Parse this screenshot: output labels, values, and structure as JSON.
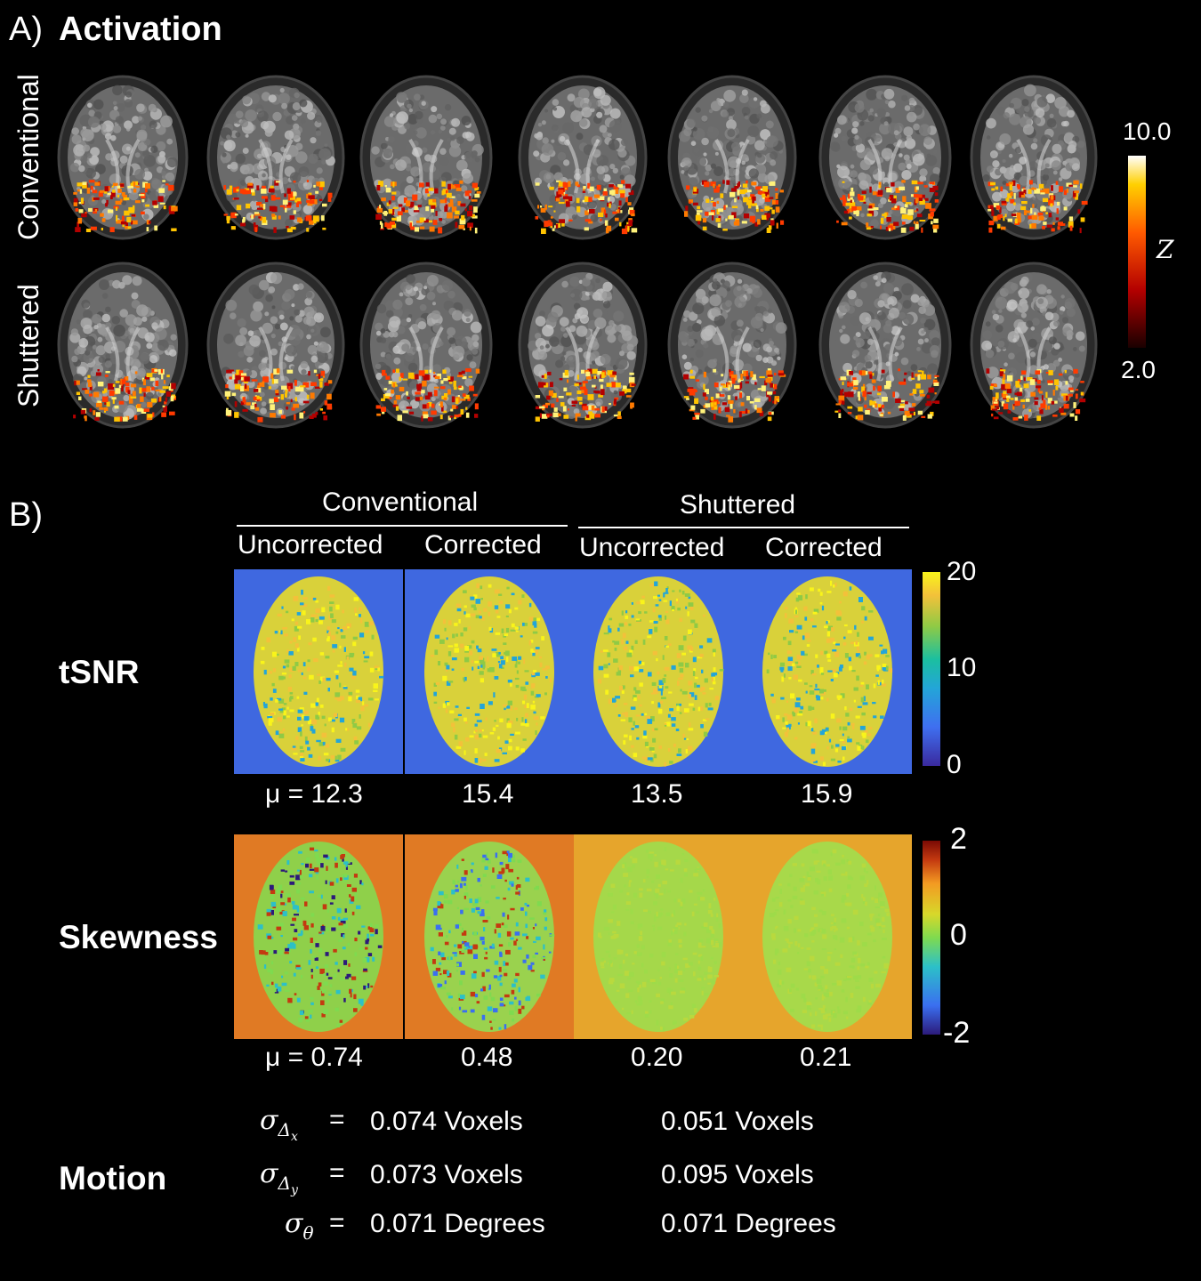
{
  "panel_a": {
    "letter": "A)",
    "title": "Activation",
    "rows": [
      "Conventional",
      "Shuttered"
    ],
    "colorbar": {
      "max": "10.0",
      "min": "2.0",
      "symbol": "Z",
      "colors": [
        "#1a0000",
        "#b30000",
        "#ff5a00",
        "#ffd000",
        "#ffffff"
      ]
    }
  },
  "panel_b": {
    "letter": "B)",
    "groups": [
      {
        "label": "Conventional",
        "columns": [
          "Uncorrected",
          "Corrected"
        ]
      },
      {
        "label": "Shuttered",
        "columns": [
          "Uncorrected",
          "Corrected"
        ]
      }
    ],
    "tsnr": {
      "label": "tSNR",
      "means": [
        "μ = 12.3",
        "15.4",
        "13.5",
        "15.9"
      ],
      "colorbar": {
        "ticks": [
          "20",
          "10",
          "0"
        ]
      }
    },
    "skewness": {
      "label": "Skewness",
      "means": [
        "μ = 0.74",
        "0.48",
        "0.20",
        "0.21"
      ],
      "colorbar": {
        "ticks": [
          "2",
          "0",
          "-2"
        ]
      }
    },
    "motion": {
      "label": "Motion",
      "rows": [
        {
          "symbol": "σΔx",
          "eq": "=",
          "conventional": "0.074 Voxels",
          "shuttered": "0.051 Voxels"
        },
        {
          "symbol": "σΔy",
          "eq": "=",
          "conventional": "0.073 Voxels",
          "shuttered": "0.095 Voxels"
        },
        {
          "symbol": "σθ",
          "eq": "=",
          "conventional": "0.071 Degrees",
          "shuttered": "0.071 Degrees"
        }
      ]
    }
  }
}
